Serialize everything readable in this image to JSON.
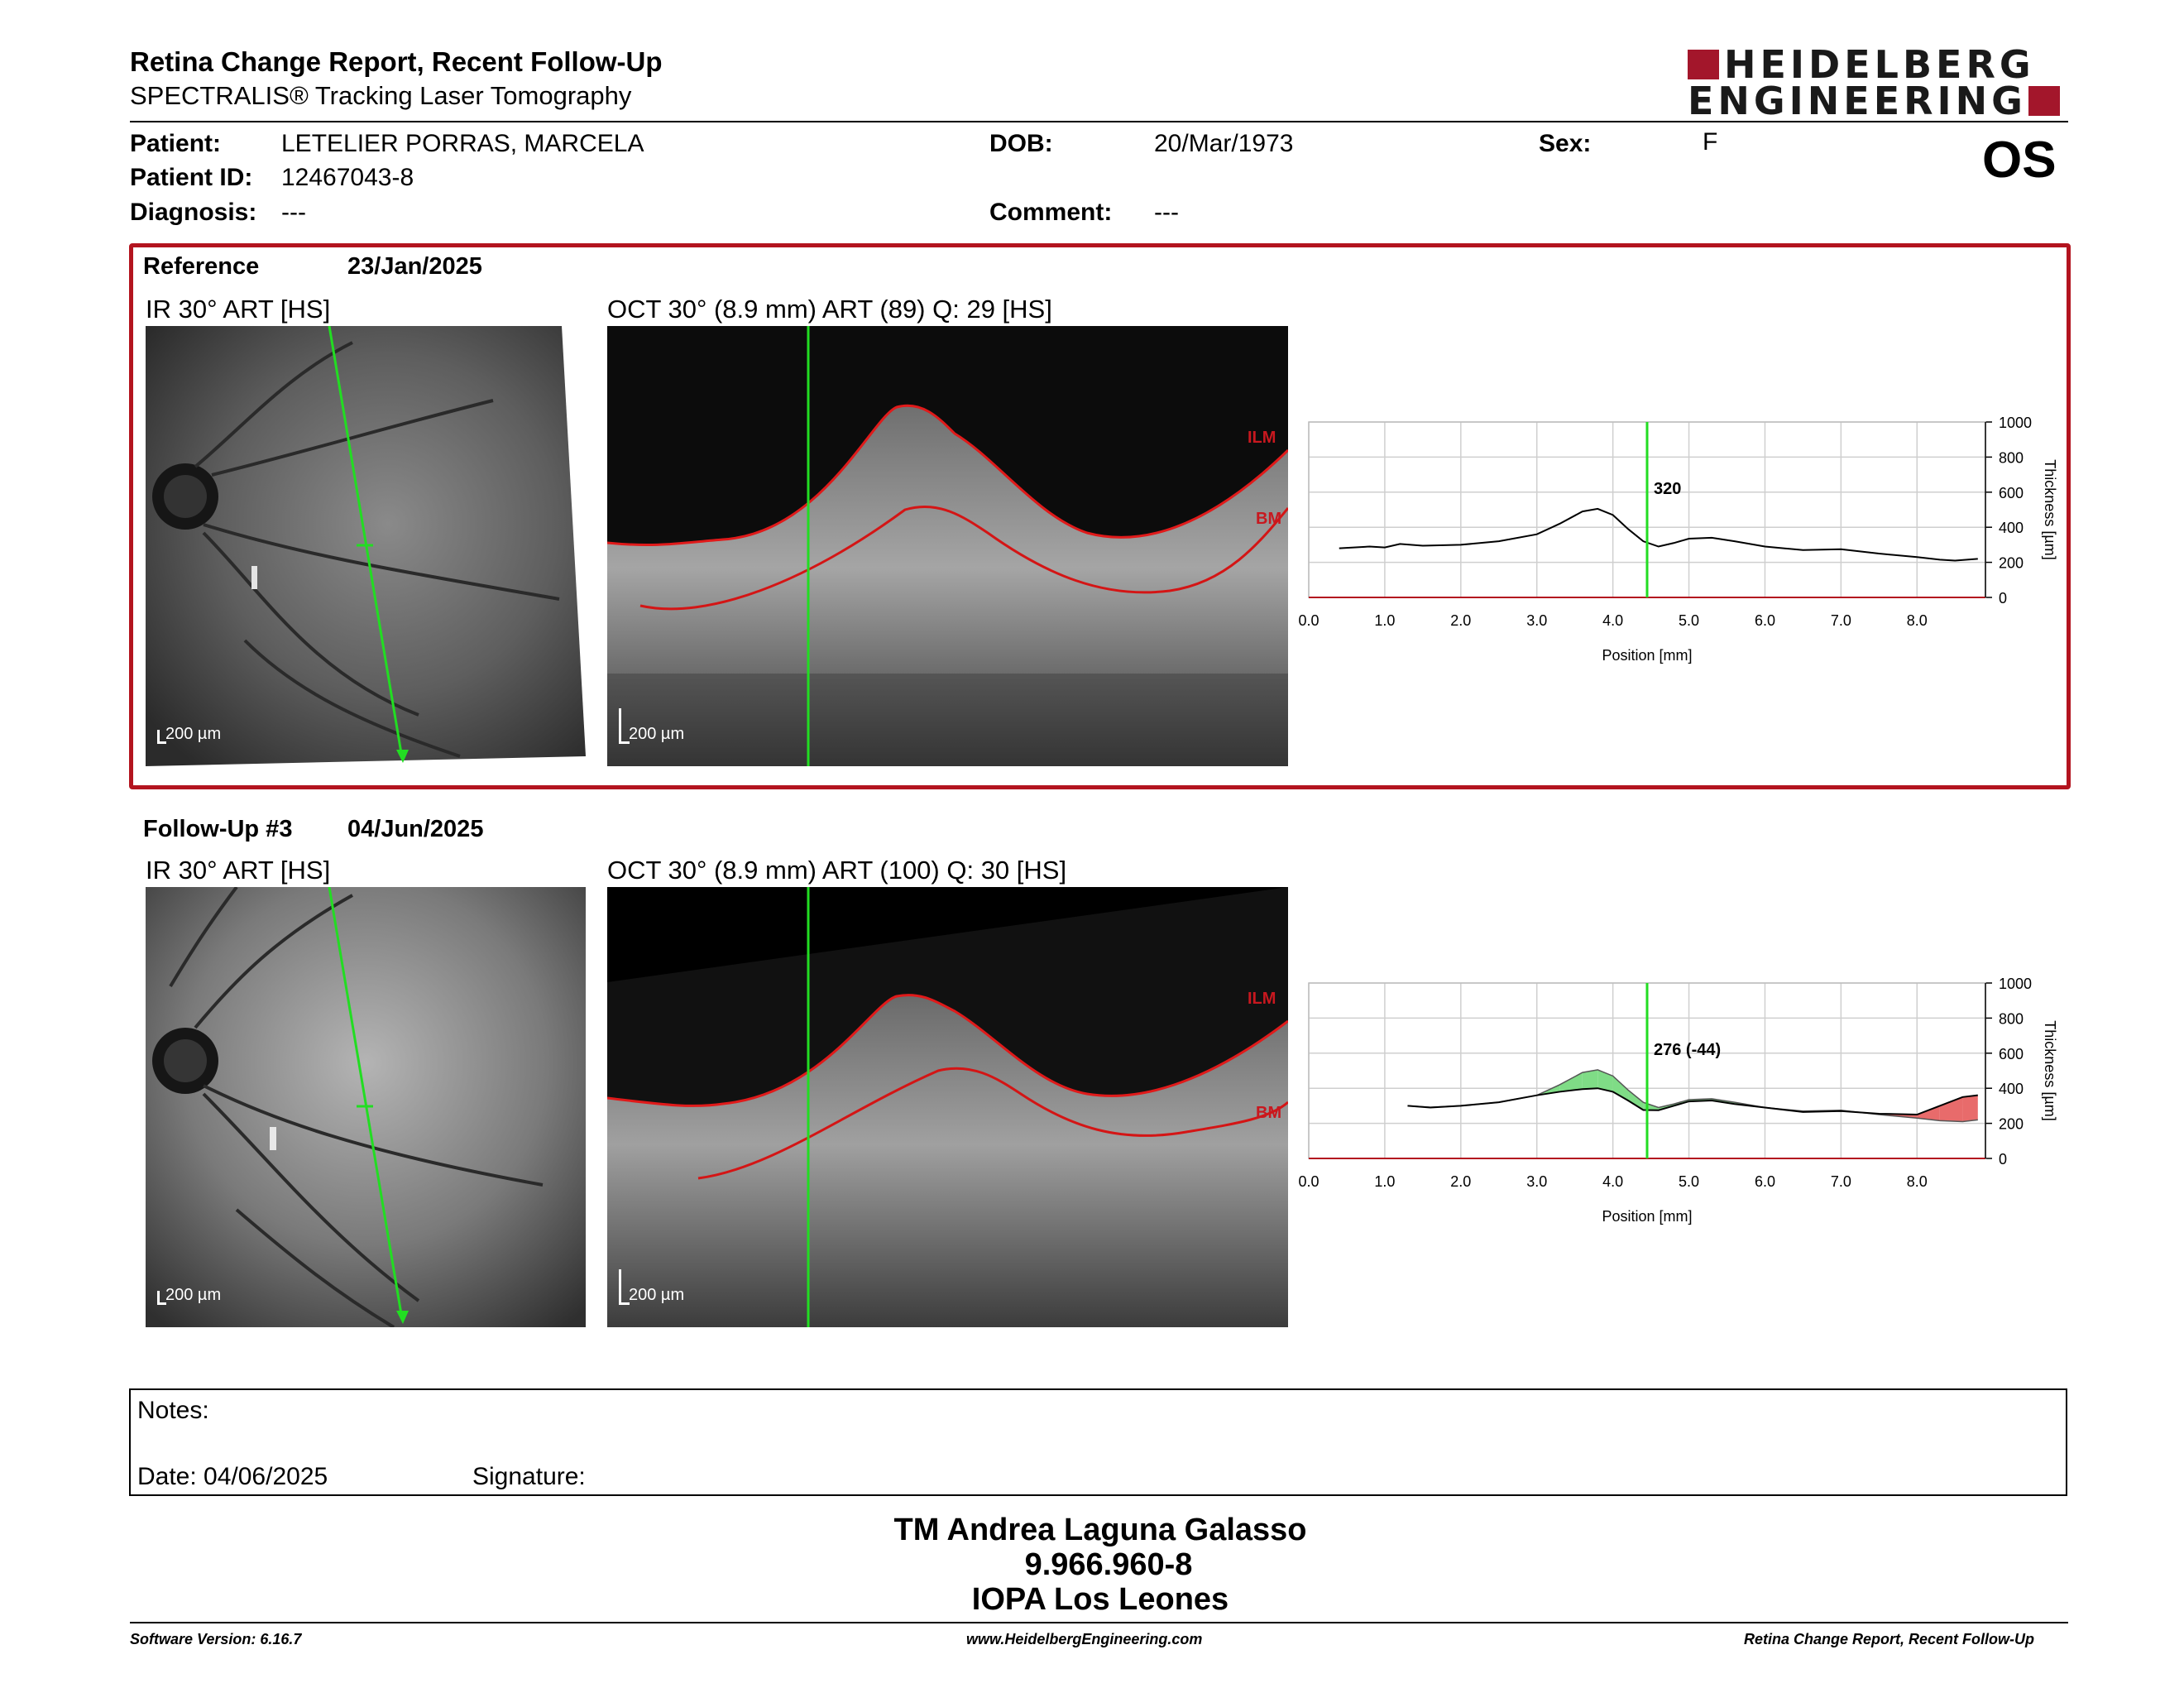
{
  "header": {
    "title": "Retina Change Report, Recent Follow-Up",
    "subtitle": "SPECTRALIS® Tracking Laser Tomography",
    "logo_line1": "HEIDELBERG",
    "logo_line2": "ENGINEERING",
    "eye": "OS"
  },
  "patient": {
    "patient_label": "Patient:",
    "patient_name": "LETELIER PORRAS, MARCELA",
    "id_label": "Patient ID:",
    "id_value": "12467043-8",
    "diagnosis_label": "Diagnosis:",
    "diagnosis_value": "---",
    "dob_label": "DOB:",
    "dob_value": "20/Mar/1973",
    "comment_label": "Comment:",
    "comment_value": "---",
    "sex_label": "Sex:",
    "sex_value": "F"
  },
  "reference": {
    "label": "Reference",
    "date": "23/Jan/2025",
    "ir_caption": "IR 30° ART [HS]",
    "oct_caption": "OCT 30° (8.9 mm) ART (89) Q: 29 [HS]",
    "ir_scale": "200 µm",
    "oct_scale": "200 µm",
    "ilm": "ILM",
    "bm": "BM"
  },
  "followup": {
    "label": "Follow-Up #3",
    "date": "04/Jun/2025",
    "ir_caption": "IR 30° ART [HS]",
    "oct_caption": "OCT 30° (8.9 mm) ART (100) Q: 30 [HS]",
    "ir_scale": "200 µm",
    "oct_scale": "200 µm",
    "ilm": "ILM",
    "bm": "BM"
  },
  "notes": {
    "notes_label": "Notes:",
    "date_label": "Date: 04/06/2025",
    "signature_label": "Signature:"
  },
  "signer": {
    "name": "TM Andrea Laguna Galasso",
    "id": "9.966.960-8",
    "org": "IOPA Los Leones"
  },
  "footer": {
    "software": "Software Version: 6.16.7",
    "website": "www.HeidelbergEngineering.com",
    "report": "Retina Change Report, Recent Follow-Up"
  },
  "colors": {
    "brand_red": "#a3162b",
    "frame_red": "#b3141f",
    "scan_green": "#22dd22",
    "increase_green": "#7fdc86",
    "decrease_red": "#e86b6b"
  },
  "chart_data": [
    {
      "type": "line",
      "xlabel": "Position [mm]",
      "ylabel": "Thickness [µm]",
      "xlim": [
        0,
        8.9
      ],
      "ylim": [
        0,
        1000
      ],
      "xticks": [
        "0.0",
        "1.0",
        "2.0",
        "3.0",
        "4.0",
        "5.0",
        "6.0",
        "7.0",
        "8.0"
      ],
      "yticks": [
        "0",
        "200",
        "400",
        "600",
        "800",
        "1000"
      ],
      "marker_x": 4.45,
      "marker_label": "320",
      "series": [
        {
          "x": [
            0.4,
            0.8,
            1.0,
            1.2,
            1.5,
            2.0,
            2.5,
            3.0,
            3.3,
            3.6,
            3.8,
            4.0,
            4.2,
            4.4,
            4.6,
            4.8,
            5.0,
            5.3,
            5.6,
            6.0,
            6.5,
            7.0,
            7.5,
            8.0,
            8.3,
            8.5,
            8.8
          ],
          "values": [
            280,
            290,
            285,
            305,
            295,
            300,
            320,
            360,
            420,
            490,
            505,
            470,
            390,
            320,
            290,
            310,
            335,
            340,
            320,
            290,
            270,
            275,
            250,
            230,
            215,
            210,
            220
          ]
        }
      ]
    },
    {
      "type": "area",
      "xlabel": "Position [mm]",
      "ylabel": "Thickness [µm]",
      "xlim": [
        0,
        8.9
      ],
      "ylim": [
        0,
        1000
      ],
      "xticks": [
        "0.0",
        "1.0",
        "2.0",
        "3.0",
        "4.0",
        "5.0",
        "6.0",
        "7.0",
        "8.0"
      ],
      "yticks": [
        "0",
        "200",
        "400",
        "600",
        "800",
        "1000"
      ],
      "marker_x": 4.45,
      "marker_label": "276 (-44)",
      "series": [
        {
          "x": [
            1.3,
            1.6,
            2.0,
            2.5,
            3.0,
            3.3,
            3.6,
            3.8,
            4.0,
            4.2,
            4.4,
            4.6,
            4.8,
            5.0,
            5.3,
            5.6,
            6.0,
            6.5,
            7.0,
            7.5,
            8.0,
            8.3,
            8.6,
            8.8
          ],
          "values": [
            300,
            290,
            300,
            320,
            360,
            380,
            395,
            400,
            380,
            330,
            276,
            275,
            300,
            325,
            330,
            310,
            290,
            265,
            270,
            255,
            250,
            300,
            350,
            360
          ]
        },
        {
          "x": [
            1.3,
            1.6,
            2.0,
            2.5,
            3.0,
            3.3,
            3.6,
            3.8,
            4.0,
            4.2,
            4.4,
            4.6,
            4.8,
            5.0,
            5.3,
            5.6,
            6.0,
            6.5,
            7.0,
            7.5,
            8.0,
            8.3,
            8.6,
            8.8
          ],
          "values": [
            300,
            292,
            300,
            320,
            360,
            420,
            490,
            505,
            470,
            390,
            320,
            290,
            310,
            335,
            340,
            320,
            290,
            270,
            275,
            250,
            230,
            215,
            210,
            220
          ]
        }
      ]
    }
  ]
}
